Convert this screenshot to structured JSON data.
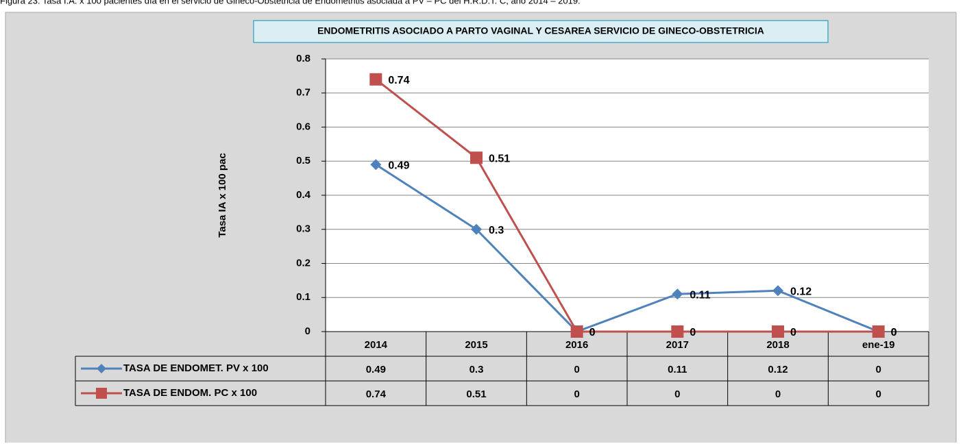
{
  "chart_data": {
    "type": "line",
    "caption": "Figura 23: Tasa I.A. x 100 pacientes día en el servicio de Gineco-Obstetricia de Endometritis asociada a PV – PC del H.R.D.T. C, año 2014 – 2019.",
    "title": "ENDOMETRITIS ASOCIADO A PARTO VAGINAL Y CESAREA SERVICIO DE GINECO-OBSTETRICIA",
    "y_label": "Tasa  IA x 100 pac",
    "categories": [
      "2014",
      "2015",
      "2016",
      "2017",
      "2018",
      "ene-19"
    ],
    "series": [
      {
        "name": "TASA DE ENDOMET. PV x 100",
        "color": "#4f81bd",
        "marker": "diamond",
        "values": [
          0.49,
          0.3,
          0,
          0.11,
          0.12,
          0
        ]
      },
      {
        "name": "TASA DE ENDOM. PC x 100",
        "color": "#c0504d",
        "marker": "square",
        "values": [
          0.74,
          0.51,
          0,
          0,
          0,
          0
        ]
      }
    ],
    "ylim": [
      0,
      0.8
    ],
    "yticks": [
      0,
      0.1,
      0.2,
      0.3,
      0.4,
      0.5,
      0.6,
      0.7,
      0.8
    ],
    "grid": true
  }
}
